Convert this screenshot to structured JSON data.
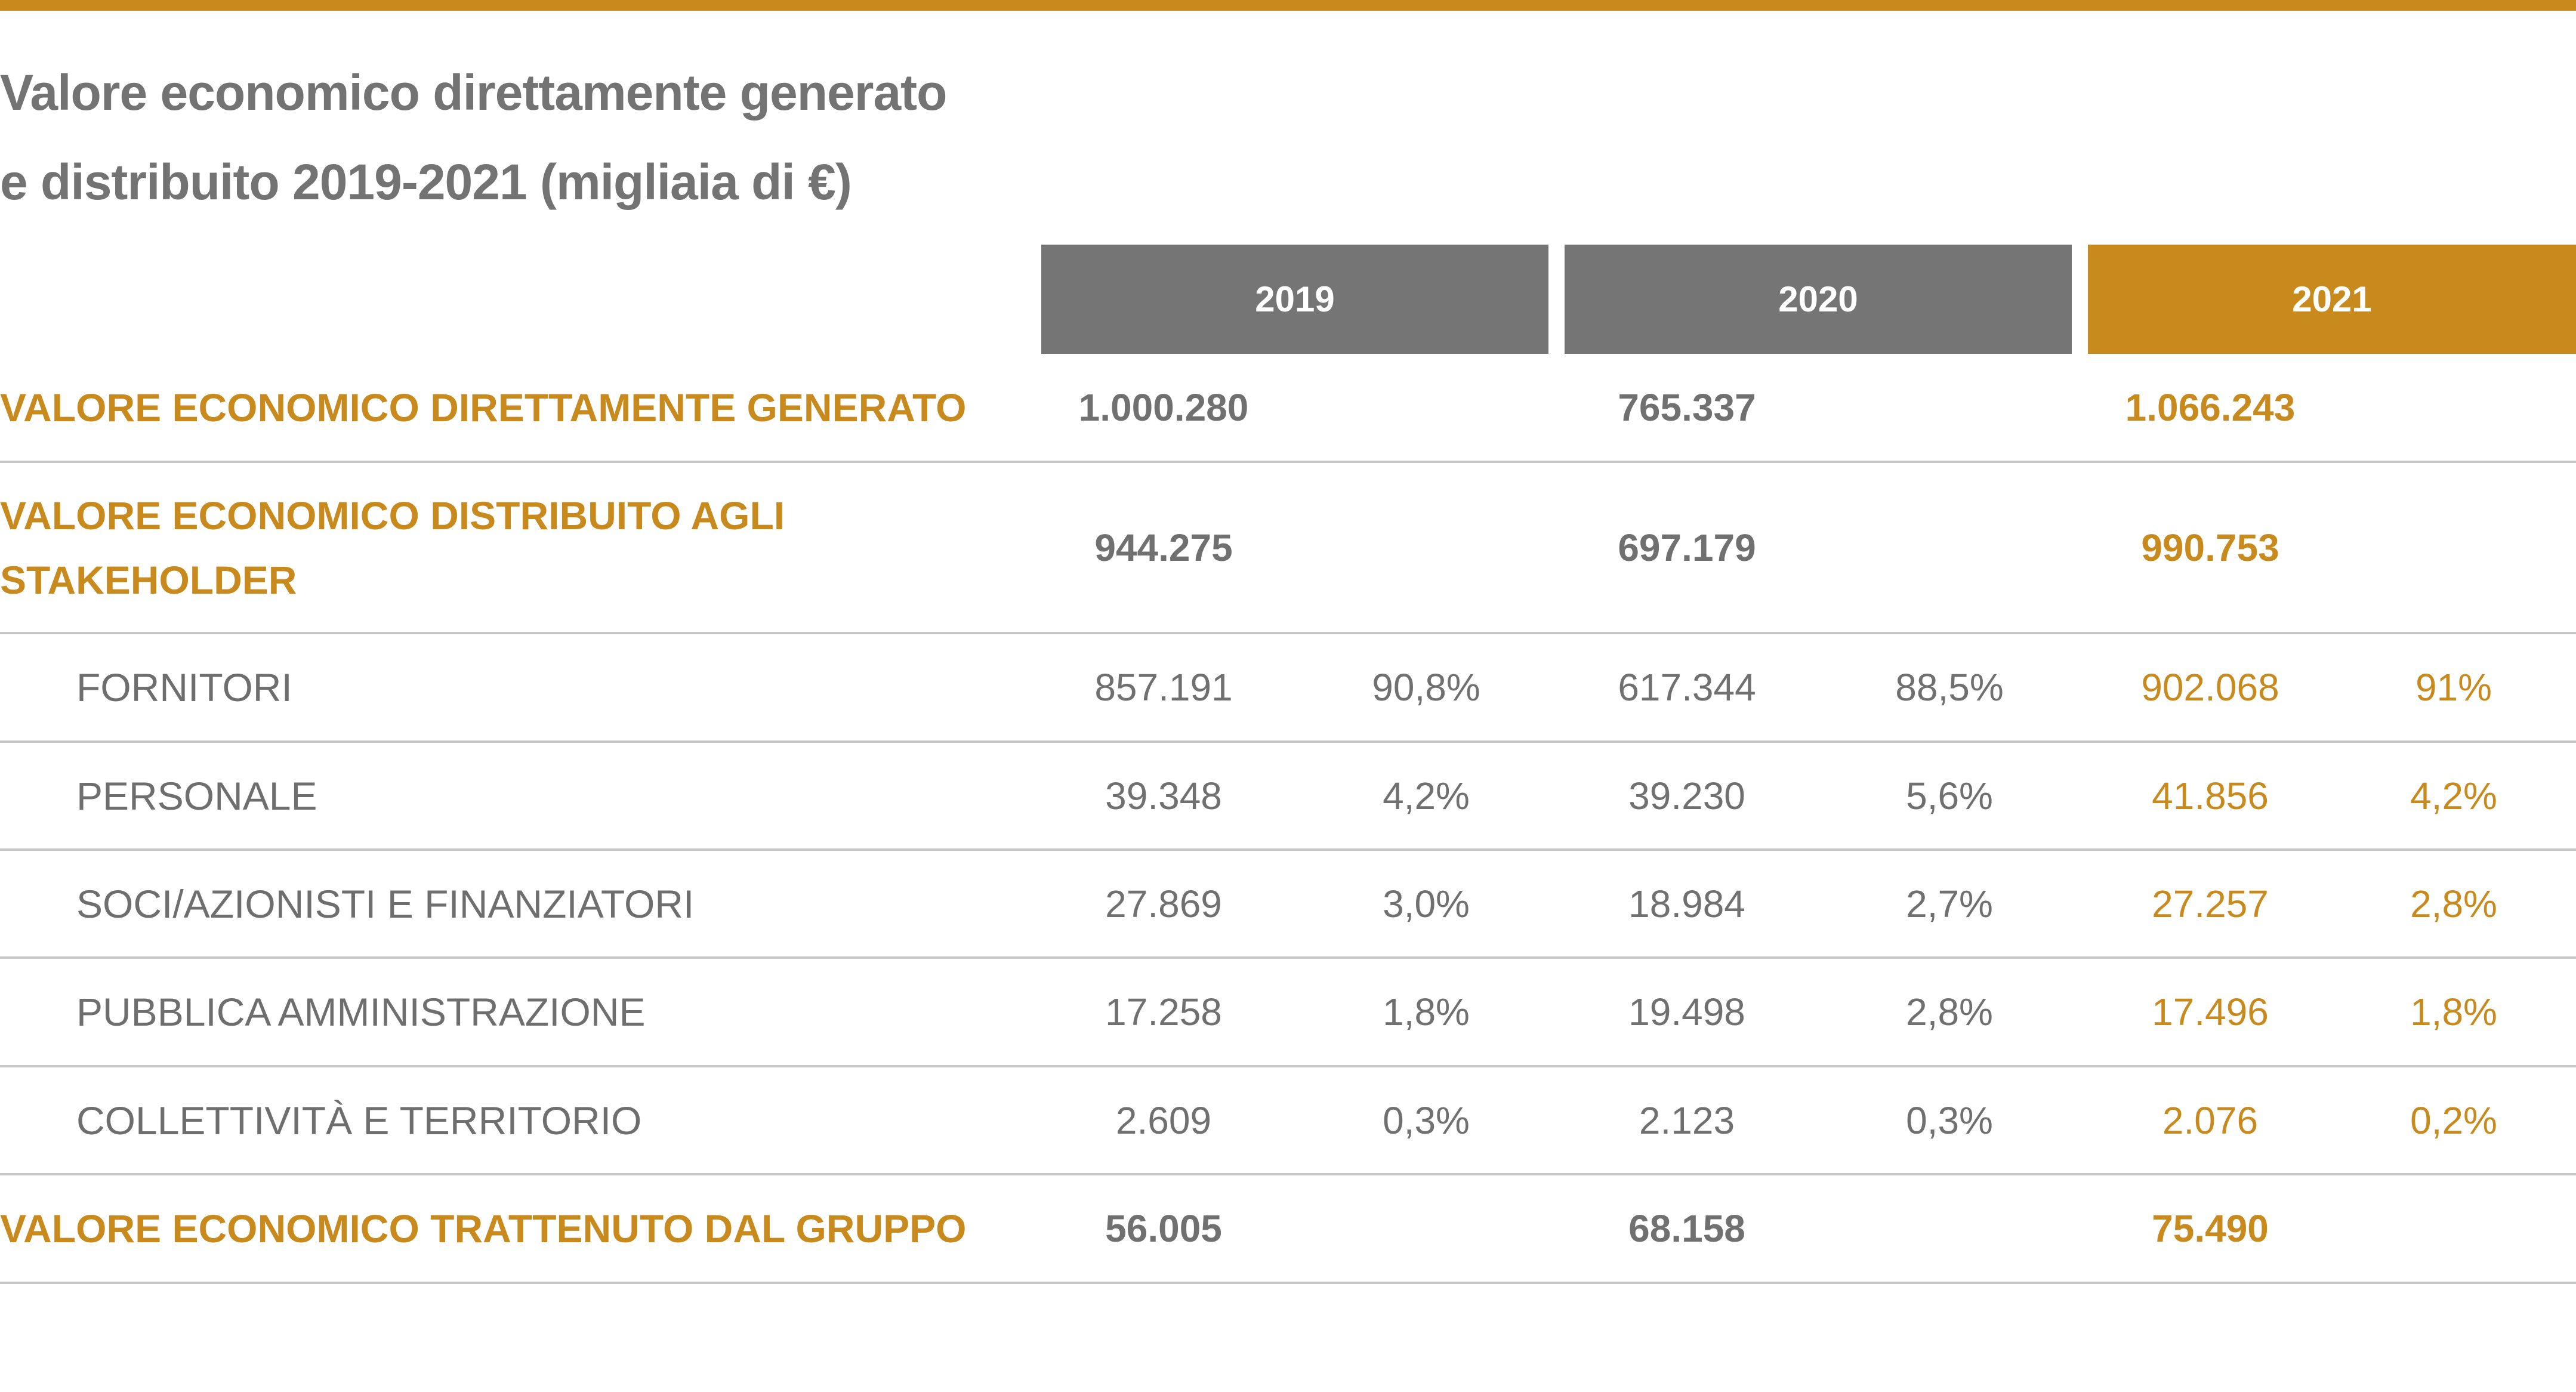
{
  "title": {
    "line1": "Valore economico direttamente generato",
    "line2": "e distribuito 2019-2021 (migliaia di €)"
  },
  "colors": {
    "accent": "#c88a1d",
    "header_grey": "#757575",
    "text_grey": "#707070"
  },
  "headers": [
    "2019",
    "2020",
    "2021"
  ],
  "rows": [
    {
      "label": "VALORE ECONOMICO DIRETTAMENTE GENERATO",
      "v2019": "1.000.280",
      "p2019": "",
      "v2020": "765.337",
      "p2020": "",
      "v2021": "1.066.243",
      "p2021": ""
    },
    {
      "label": "VALORE ECONOMICO DISTRIBUITO AGLI STAKEHOLDER",
      "v2019": "944.275",
      "p2019": "",
      "v2020": "697.179",
      "p2020": "",
      "v2021": "990.753",
      "p2021": ""
    },
    {
      "label": "FORNITORI",
      "v2019": "857.191",
      "p2019": "90,8%",
      "v2020": "617.344",
      "p2020": "88,5%",
      "v2021": "902.068",
      "p2021": "91%"
    },
    {
      "label": "PERSONALE",
      "v2019": "39.348",
      "p2019": "4,2%",
      "v2020": "39.230",
      "p2020": "5,6%",
      "v2021": "41.856",
      "p2021": "4,2%"
    },
    {
      "label": "SOCI/AZIONISTI E FINANZIATORI",
      "v2019": "27.869",
      "p2019": "3,0%",
      "v2020": "18.984",
      "p2020": "2,7%",
      "v2021": "27.257",
      "p2021": "2,8%"
    },
    {
      "label": "PUBBLICA AMMINISTRAZIONE",
      "v2019": "17.258",
      "p2019": "1,8%",
      "v2020": "19.498",
      "p2020": "2,8%",
      "v2021": "17.496",
      "p2021": "1,8%"
    },
    {
      "label": "COLLETTIVITÀ E TERRITORIO",
      "v2019": "2.609",
      "p2019": "0,3%",
      "v2020": "2.123",
      "p2020": "0,3%",
      "v2021": "2.076",
      "p2021": "0,2%"
    },
    {
      "label": "VALORE ECONOMICO TRATTENUTO DAL GRUPPO",
      "v2019": "56.005",
      "p2019": "",
      "v2020": "68.158",
      "p2020": "",
      "v2021": "75.490",
      "p2021": ""
    }
  ]
}
